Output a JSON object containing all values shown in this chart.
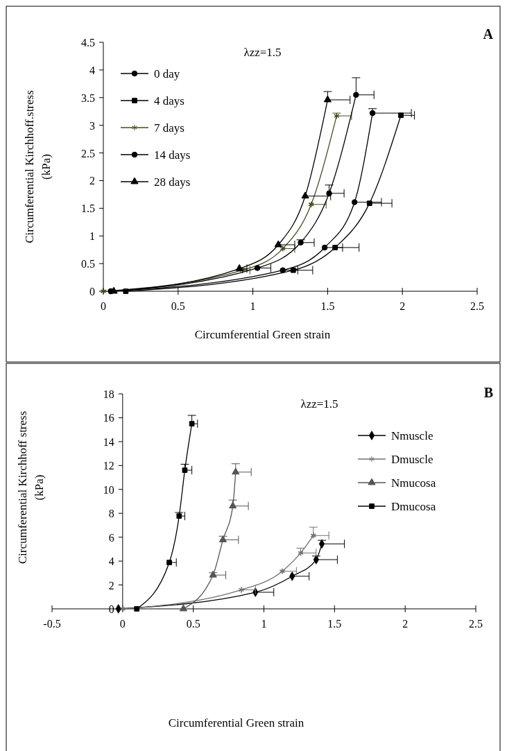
{
  "chart_data": [
    {
      "type": "line",
      "ylabel": "Circumferential Kirchhoff.stress\n(kPa)",
      "xlabel": "Circumferential Green strain",
      "annotations": [
        "λzz=1.5",
        "A"
      ],
      "xlim": [
        0,
        2.5
      ],
      "xticks": [
        0,
        0.5,
        1,
        1.5,
        2,
        2.5
      ],
      "ylim": [
        0,
        4.5
      ],
      "yticks": [
        0,
        0.5,
        1,
        1.5,
        2,
        2.5,
        3,
        3.5,
        4,
        4.5
      ],
      "grid": false,
      "legend": "top left",
      "series": [
        {
          "name": "0 day",
          "color": "#000000",
          "marker": "circle",
          "x": [
            0.05,
            1.2,
            1.48,
            1.68,
            1.8
          ],
          "values": [
            0,
            0.38,
            0.79,
            1.61,
            3.22
          ],
          "xerrors": [
            null,
            [
              1.2,
              1.3
            ],
            [
              1.48,
              1.6
            ],
            [
              1.68,
              1.86
            ],
            [
              1.8,
              2.06
            ]
          ],
          "errors": [
            null,
            null,
            null,
            null,
            [
              3.22,
              3.3
            ]
          ]
        },
        {
          "name": "4 days",
          "color": "#000000",
          "marker": "square",
          "x": [
            0.15,
            1.27,
            1.55,
            1.78,
            1.99
          ],
          "values": [
            0,
            0.38,
            0.79,
            1.59,
            3.18
          ],
          "xerrors": [
            null,
            [
              1.27,
              1.4
            ],
            [
              1.55,
              1.71
            ],
            [
              1.78,
              1.93
            ],
            [
              1.99,
              2.08
            ]
          ],
          "errors": [
            null,
            null,
            null,
            null,
            null
          ]
        },
        {
          "name": "7 days",
          "color": "#4a4a20",
          "marker": "cross",
          "x": [
            0,
            0.93,
            1.2,
            1.39,
            1.56
          ],
          "values": [
            0,
            0.38,
            0.77,
            1.57,
            3.17
          ],
          "xerrors": [
            null,
            [
              0.93,
              0.98
            ],
            [
              1.2,
              1.28
            ],
            [
              1.39,
              1.49
            ],
            [
              1.56,
              1.66
            ]
          ],
          "errors": [
            null,
            null,
            null,
            null,
            [
              3.17,
              3.22
            ]
          ]
        },
        {
          "name": "14 days",
          "color": "#000000",
          "marker": "circle",
          "x": [
            0.05,
            1.03,
            1.32,
            1.51,
            1.69
          ],
          "values": [
            0,
            0.42,
            0.88,
            1.77,
            3.55
          ],
          "xerrors": [
            null,
            [
              1.03,
              1.12
            ],
            [
              1.32,
              1.41
            ],
            [
              1.51,
              1.61
            ],
            [
              1.69,
              1.81
            ]
          ],
          "errors": [
            null,
            null,
            [
              0.88,
              0.93
            ],
            [
              1.77,
              1.92
            ],
            [
              3.55,
              3.86
            ]
          ]
        },
        {
          "name": "28 days",
          "color": "#000000",
          "marker": "triangle",
          "x": [
            0.07,
            0.91,
            1.17,
            1.35,
            1.5
          ],
          "values": [
            0,
            0.41,
            0.84,
            1.72,
            3.46
          ],
          "xerrors": [
            null,
            [
              0.91,
              0.96
            ],
            [
              1.17,
              1.28
            ],
            [
              1.35,
              1.52
            ],
            [
              1.5,
              1.65
            ]
          ],
          "errors": [
            null,
            null,
            null,
            null,
            [
              3.46,
              3.61
            ]
          ]
        }
      ]
    },
    {
      "type": "line",
      "ylabel": "Circumferential Kirchhoff stress\n(kPa)",
      "xlabel": "Circumferential Green strain",
      "annotations": [
        "λzz=1.5",
        "B"
      ],
      "xlim": [
        -0.5,
        2.5
      ],
      "xticks": [
        -0.5,
        0,
        0.5,
        1,
        1.5,
        2,
        2.5
      ],
      "ylim": [
        0,
        18
      ],
      "yticks": [
        0,
        2,
        4,
        6,
        8,
        10,
        12,
        14,
        16,
        18
      ],
      "grid": false,
      "legend": "right",
      "series": [
        {
          "name": "Nmuscle",
          "color": "#000000",
          "marker": "diamond",
          "x": [
            -0.03,
            0.94,
            1.2,
            1.37,
            1.41
          ],
          "values": [
            0,
            1.39,
            2.73,
            4.12,
            5.44
          ],
          "xerrors": [
            null,
            [
              0.94,
              1.07
            ],
            [
              1.2,
              1.32
            ],
            [
              1.37,
              1.52
            ],
            [
              1.41,
              1.57
            ]
          ],
          "errors": [
            null,
            null,
            null,
            [
              4.12,
              4.42
            ],
            [
              5.44,
              5.74
            ]
          ]
        },
        {
          "name": "Dmuscle",
          "color": "#707070",
          "marker": "cross",
          "x": [
            0,
            0.84,
            1.13,
            1.26,
            1.35
          ],
          "values": [
            0,
            1.59,
            3.15,
            4.68,
            6.14
          ],
          "xerrors": [
            null,
            [
              0.84,
              0.94
            ],
            [
              1.13,
              1.23
            ],
            [
              1.26,
              1.37
            ],
            [
              1.35,
              1.46
            ]
          ],
          "errors": [
            null,
            null,
            null,
            [
              4.68,
              5.08
            ],
            [
              6.14,
              6.84
            ]
          ]
        },
        {
          "name": "Nmucosa",
          "color": "#555555",
          "marker": "triangle",
          "x": [
            0.43,
            0.64,
            0.71,
            0.78,
            0.8
          ],
          "values": [
            0,
            2.83,
            5.78,
            8.61,
            11.45
          ],
          "xerrors": [
            null,
            [
              0.64,
              0.73
            ],
            [
              0.71,
              0.82
            ],
            [
              0.78,
              0.89
            ],
            [
              0.8,
              0.91
            ]
          ],
          "errors": [
            null,
            [
              2.83,
              3.03
            ],
            [
              5.78,
              6.08
            ],
            [
              8.61,
              9.11
            ],
            [
              11.45,
              12.15
            ]
          ]
        },
        {
          "name": "Dmucosa",
          "color": "#000000",
          "marker": "square",
          "x": [
            0.1,
            0.33,
            0.4,
            0.44,
            0.49
          ],
          "values": [
            0,
            3.88,
            7.77,
            11.61,
            15.5
          ],
          "xerrors": [
            null,
            [
              0.33,
              0.38
            ],
            [
              0.4,
              0.44
            ],
            [
              0.44,
              0.49
            ],
            [
              0.49,
              0.53
            ]
          ],
          "errors": [
            null,
            null,
            [
              7.77,
              8.07
            ],
            [
              11.61,
              12.11
            ],
            [
              15.5,
              16.2
            ]
          ]
        }
      ]
    }
  ]
}
